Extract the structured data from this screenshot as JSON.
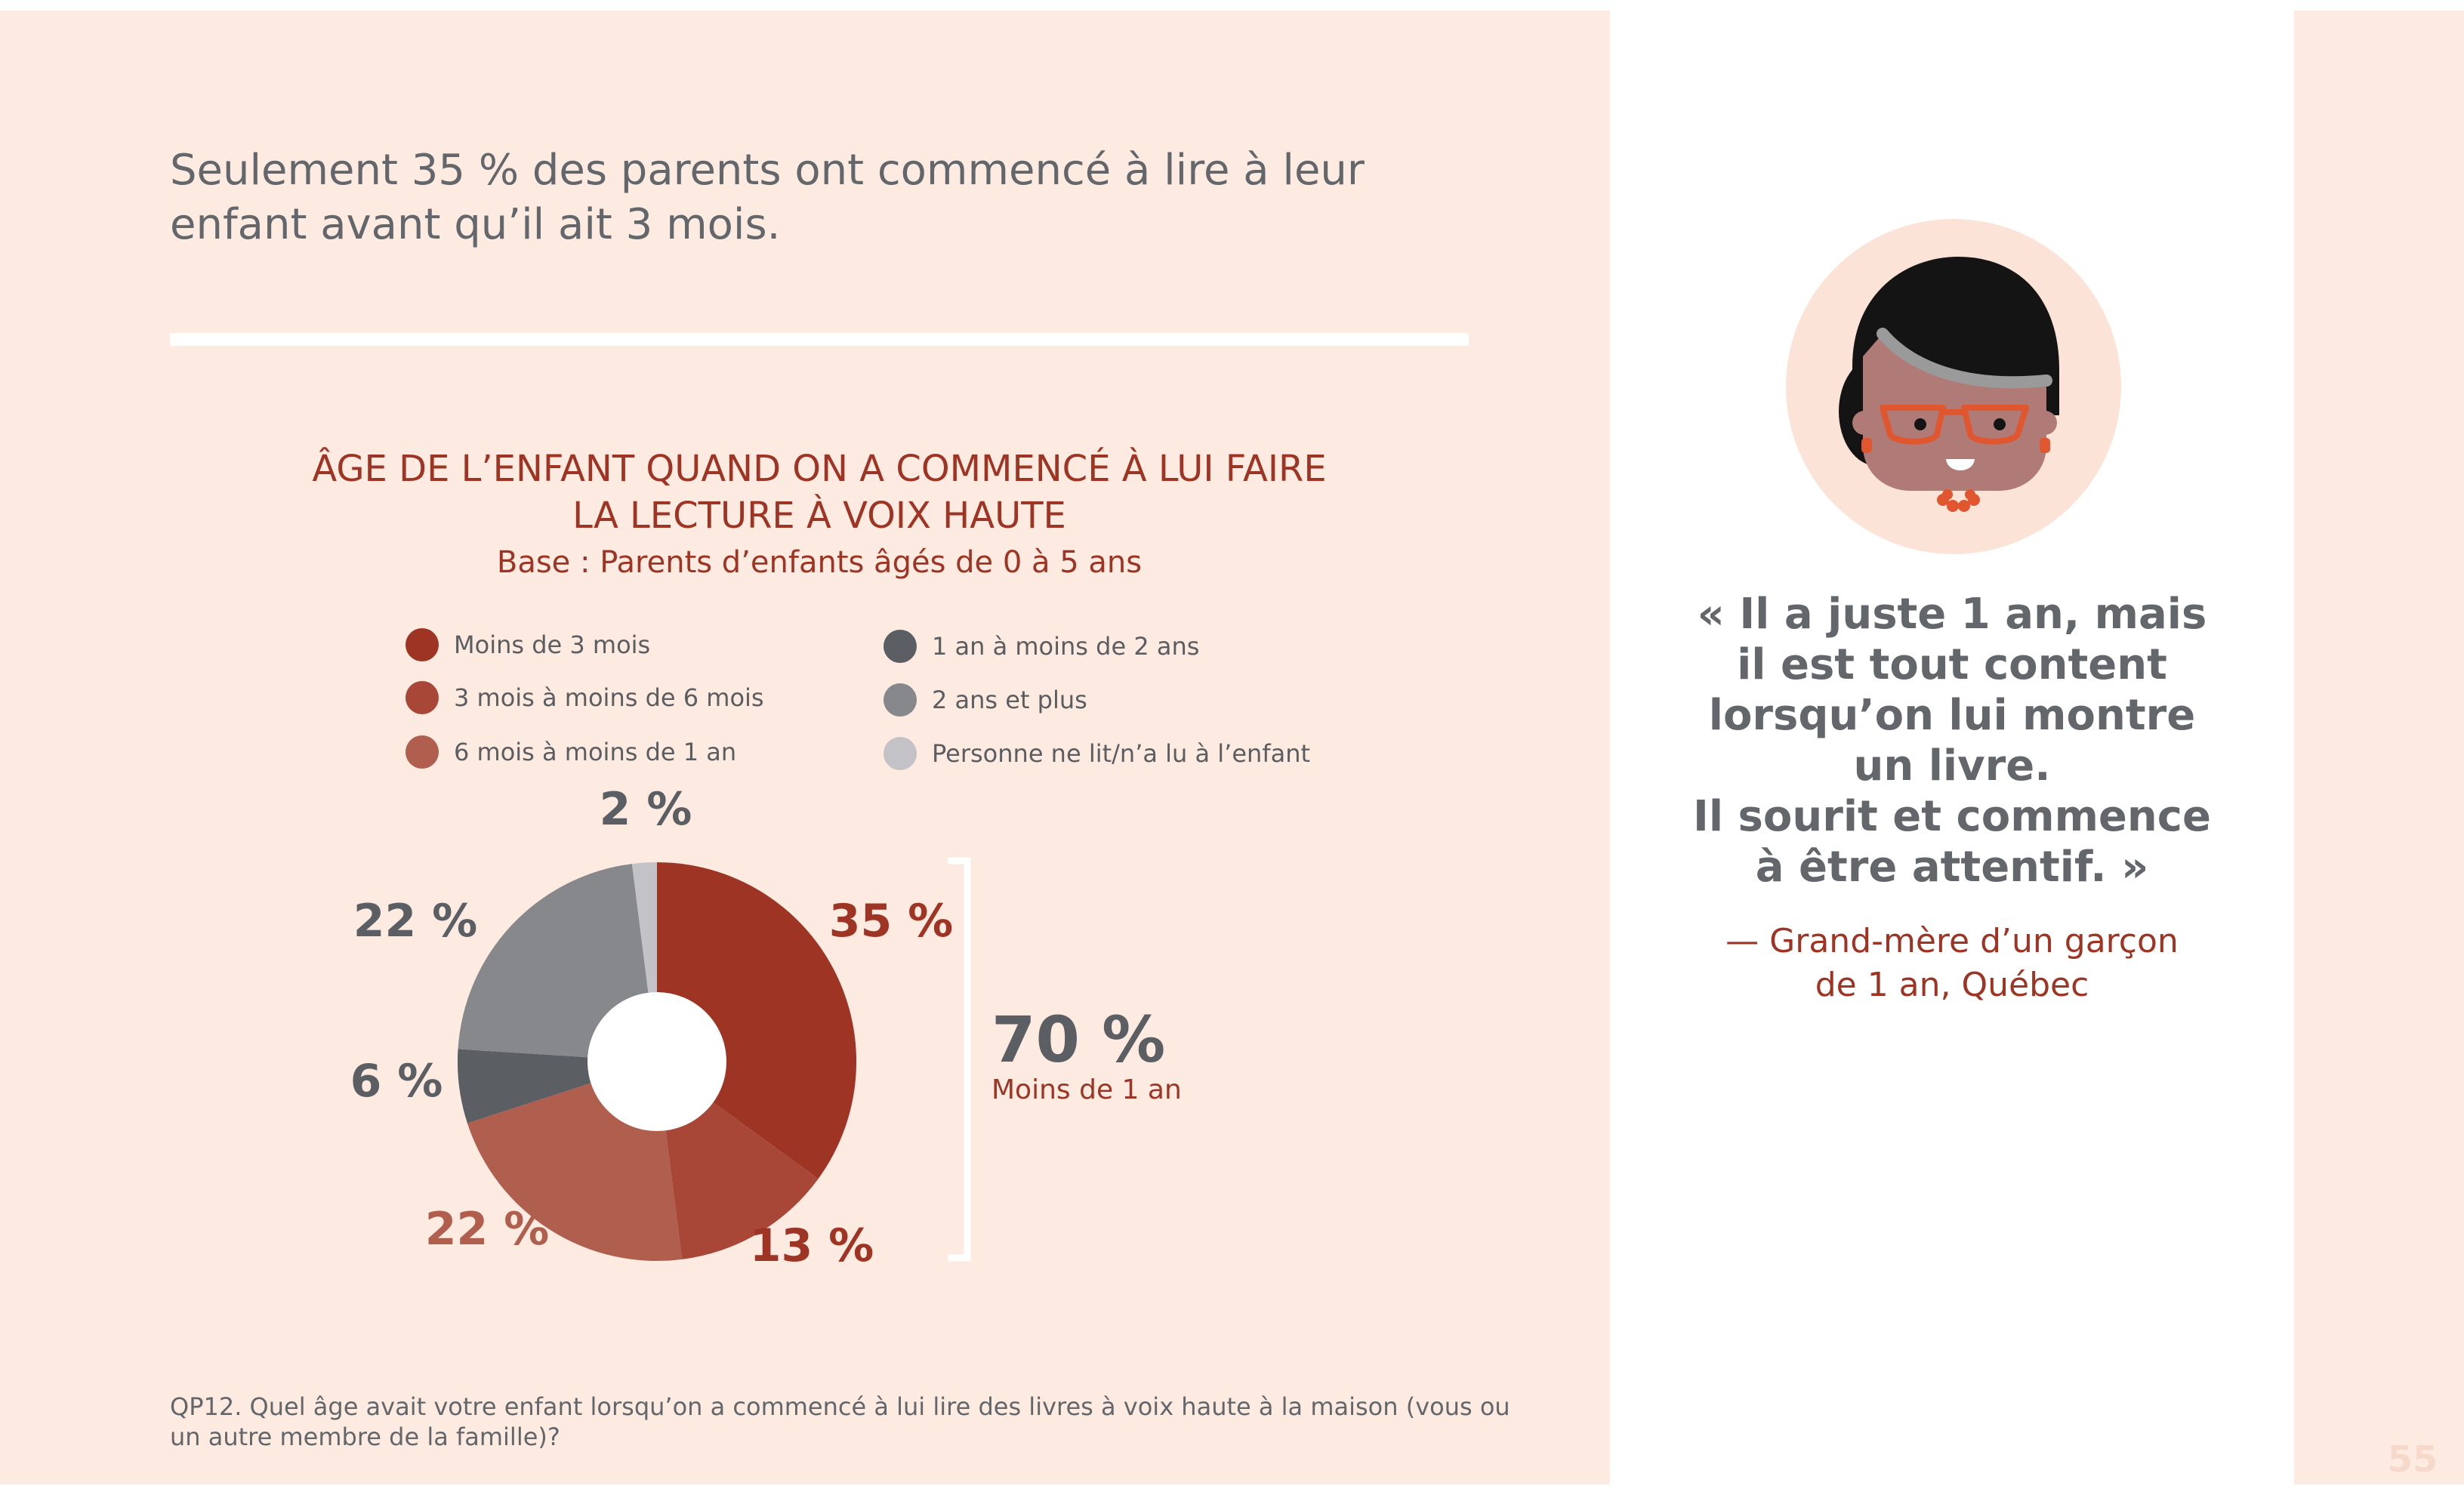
{
  "headline": "Seulement 35 % des parents ont commencé à lire à leur enfant avant qu’il ait 3 mois.",
  "chart_data": {
    "type": "pie",
    "title": "ÂGE DE L’ENFANT QUAND ON A COMMENCÉ À LUI FAIRE\nLA LECTURE À VOIX HAUTE",
    "subtitle": "Base : Parents d’enfants âgés de 0 à 5 ans",
    "categories": [
      "Moins de 3 mois",
      "3 mois à moins de 6 mois",
      "6 mois à moins de 1 an",
      "1 an à moins de 2 ans",
      "2 ans et plus",
      "Personne ne lit/n’a lu à l’enfant"
    ],
    "values": [
      35,
      13,
      22,
      6,
      22,
      2
    ],
    "labels": [
      "35 %",
      "13 %",
      "22 %",
      "6 %",
      "22 %",
      "2 %"
    ],
    "colors": [
      "#9e3524",
      "#a84738",
      "#b05f4e",
      "#5b5e62",
      "#87888b",
      "#c3c2c7"
    ],
    "label_colors": [
      "#9e3524",
      "#9e3524",
      "#b05f4e",
      "#5b5e62",
      "#5b5e62",
      "#5b5e62"
    ],
    "donut": true,
    "bracket": {
      "value": "70 %",
      "label": "Moins de 1 an"
    }
  },
  "quote": "« Il a juste 1 an, mais\nil est tout content\nlorsqu’on lui montre\nun livre.\nIl sourit et commence\nà être attentif. »",
  "attribution": "— Grand-mère d’un garçon\nde 1 an, Québec",
  "footnote": "QP12. Quel âge avait votre enfant lorsqu’on a commencé à lui lire des livres à voix haute à la maison (vous ou un autre membre de la famille)?",
  "page_number": "55",
  "colors": {
    "background": "#fdebe2",
    "accent": "#9e3524",
    "text": "#63666a"
  }
}
